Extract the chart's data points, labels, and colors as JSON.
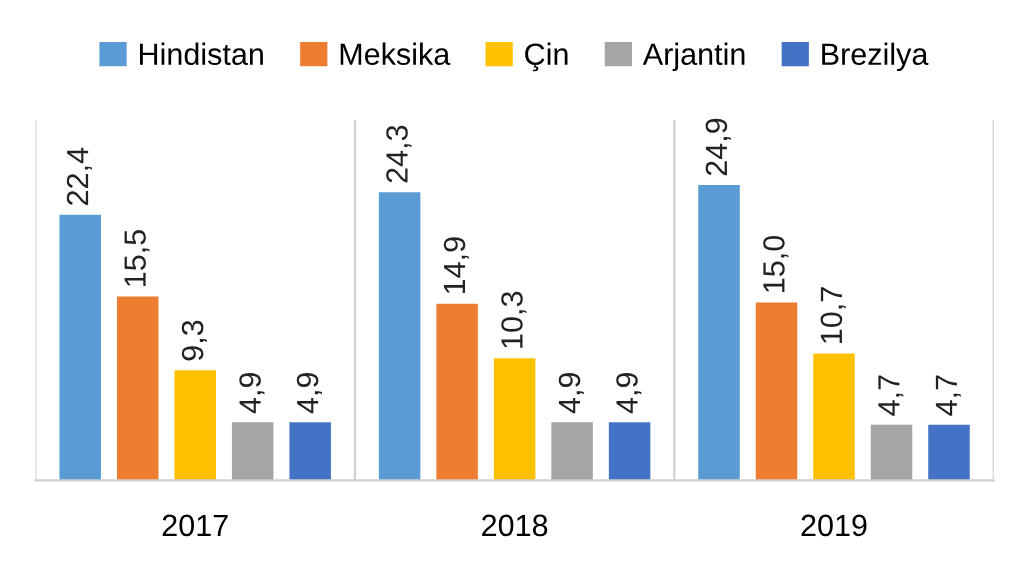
{
  "chart_data": {
    "type": "bar",
    "categories": [
      "2017",
      "2018",
      "2019"
    ],
    "series": [
      {
        "name": "Hindistan",
        "color": "#5b9bd5",
        "values": [
          22.4,
          24.3,
          24.9
        ],
        "value_labels": [
          "22,4",
          "24,3",
          "24,9"
        ]
      },
      {
        "name": "Meksika",
        "color": "#ed7d31",
        "values": [
          15.5,
          14.9,
          15.0
        ],
        "value_labels": [
          "15,5",
          "14,9",
          "15,0"
        ]
      },
      {
        "name": "Çin",
        "color": "#ffc000",
        "values": [
          9.3,
          10.3,
          10.7
        ],
        "value_labels": [
          "9,3",
          "10,3",
          "10,7"
        ]
      },
      {
        "name": "Arjantin",
        "color": "#a5a5a5",
        "values": [
          4.9,
          4.9,
          4.7
        ],
        "value_labels": [
          "4,9",
          "4,9",
          "4,7"
        ]
      },
      {
        "name": "Brezilya",
        "color": "#4472c4",
        "values": [
          4.9,
          4.9,
          4.7
        ],
        "value_labels": [
          "4,9",
          "4,9",
          "4,7"
        ]
      }
    ],
    "legend": "top",
    "grid": false
  }
}
